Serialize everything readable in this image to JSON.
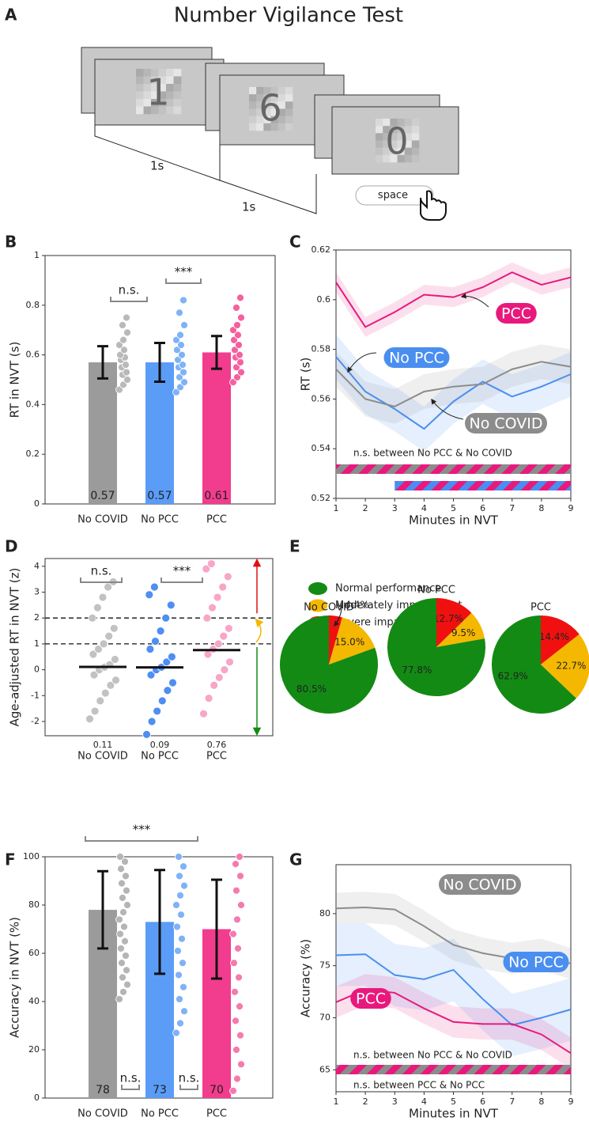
{
  "panel_a": {
    "label": "A",
    "title": "Number Vigilance Test",
    "digits": [
      "1",
      "6",
      "0"
    ],
    "intervals": [
      "1s",
      "1s"
    ],
    "key": "space"
  },
  "chart_data": [
    {
      "type": "bar",
      "panel_label": "B",
      "ylabel": "RT in NVT (s)",
      "categories": [
        "No COVID",
        "No PCC",
        "PCC"
      ],
      "values": [
        0.57,
        0.57,
        0.61
      ],
      "value_labels": [
        "0.57",
        "0.57",
        "0.61"
      ],
      "errors": [
        0.065,
        0.078,
        0.066
      ],
      "colors": [
        "#9b9b9b",
        "#5b9cf7",
        "#f23c8d"
      ],
      "point_colors": [
        "#b9b9b9",
        "#7fb2f7",
        "#f5609f"
      ],
      "points": [
        [
          0.46,
          0.48,
          0.5,
          0.52,
          0.53,
          0.55,
          0.56,
          0.58,
          0.59,
          0.6,
          0.62,
          0.64,
          0.66,
          0.69,
          0.72,
          0.75
        ],
        [
          0.45,
          0.47,
          0.49,
          0.51,
          0.53,
          0.55,
          0.56,
          0.58,
          0.6,
          0.62,
          0.64,
          0.66,
          0.68,
          0.72,
          0.77,
          0.82
        ],
        [
          0.49,
          0.51,
          0.53,
          0.55,
          0.57,
          0.59,
          0.6,
          0.62,
          0.64,
          0.66,
          0.68,
          0.7,
          0.72,
          0.75,
          0.79,
          0.83
        ]
      ],
      "annotations": [
        "n.s.",
        "***"
      ],
      "ylim": [
        0,
        1
      ],
      "yticks": [
        0,
        0.2,
        0.4,
        0.6,
        0.8,
        1
      ]
    },
    {
      "type": "line",
      "panel_label": "C",
      "xlabel": "Minutes in NVT",
      "ylabel": "RT (s)",
      "x": [
        1,
        2,
        3,
        4,
        5,
        6,
        7,
        8,
        9
      ],
      "xlim": [
        1,
        9
      ],
      "xticks": [
        1,
        2,
        3,
        4,
        5,
        6,
        7,
        8,
        9
      ],
      "ylim": [
        0.52,
        0.62
      ],
      "yticks": [
        0.52,
        0.54,
        0.56,
        0.58,
        0.6,
        0.62
      ],
      "series": [
        {
          "name": "PCC",
          "color": "#e8197d",
          "error": 0.004,
          "values": [
            0.607,
            0.589,
            0.595,
            0.602,
            0.601,
            0.605,
            0.611,
            0.606,
            0.609
          ]
        },
        {
          "name": "No PCC",
          "color": "#4a8ef0",
          "error": 0.009,
          "values": [
            0.577,
            0.563,
            0.556,
            0.548,
            0.559,
            0.567,
            0.561,
            0.565,
            0.57
          ]
        },
        {
          "name": "No COVID",
          "color": "#8c8c8c",
          "error": 0.007,
          "values": [
            0.572,
            0.56,
            0.557,
            0.563,
            0.565,
            0.566,
            0.572,
            0.575,
            0.573
          ]
        }
      ],
      "annotations": [
        "n.s. between No PCC & No COVID"
      ],
      "significance_bars": [
        {
          "x": [
            1,
            9
          ],
          "colors": [
            "#8c8c8c",
            "#e8197d"
          ]
        },
        {
          "x": [
            3,
            9
          ],
          "colors": [
            "#4a8ef0",
            "#e8197d"
          ]
        }
      ]
    },
    {
      "type": "strip",
      "panel_label": "D",
      "ylabel": "Age-adjusted RT in NVT (z)",
      "categories": [
        "No COVID",
        "No PCC",
        "PCC"
      ],
      "medians": [
        0.11,
        0.09,
        0.76
      ],
      "point_colors": [
        "#c2c2c2",
        "#4f8ef2",
        "#f7a6c8"
      ],
      "thresholds": [
        1,
        2
      ],
      "points": [
        [
          -1.9,
          -1.6,
          -1.2,
          -0.9,
          -0.6,
          -0.4,
          -0.2,
          0,
          0.1,
          0.2,
          0.4,
          0.6,
          0.8,
          1,
          1.3,
          1.6,
          2,
          2.4,
          2.8,
          3.2,
          3.4
        ],
        [
          -2.5,
          -2,
          -1.6,
          -1.2,
          -0.8,
          -0.5,
          -0.2,
          0,
          0.1,
          0.3,
          0.5,
          0.8,
          1.1,
          1.5,
          2,
          2.5,
          2.9,
          3.2
        ],
        [
          -1.7,
          -1.1,
          -0.6,
          -0.3,
          0,
          0.3,
          0.6,
          0.8,
          1,
          1.3,
          1.6,
          2,
          2.4,
          2.8,
          3.2,
          3.6,
          3.9,
          4.1
        ]
      ],
      "annotations": [
        "n.s.",
        "***"
      ],
      "ylim": [
        -2.55,
        4.3
      ],
      "yticks": [
        -2,
        -1,
        0,
        1,
        2,
        3,
        4
      ]
    },
    {
      "type": "pie",
      "panel_label": "E",
      "labels": [
        "Normal performance",
        "Moderately impairement",
        "Severe impairment"
      ],
      "colors": [
        "#138a13",
        "#f5b800",
        "#f01010"
      ],
      "pies": [
        {
          "title": "No COVID",
          "values": [
            80.5,
            15.0,
            4.4
          ],
          "value_labels": [
            "80.5%",
            "15.0%",
            "4.4%"
          ]
        },
        {
          "title": "No PCC",
          "values": [
            77.8,
            9.5,
            12.7
          ],
          "value_labels": [
            "77.8%",
            "9.5%",
            "12.7%"
          ]
        },
        {
          "title": "PCC",
          "values": [
            62.9,
            22.7,
            14.4
          ],
          "value_labels": [
            "62.9%",
            "22.7%",
            "14.4%"
          ]
        }
      ]
    },
    {
      "type": "bar",
      "panel_label": "F",
      "ylabel": "Accuracy in NVT (%)",
      "categories": [
        "No COVID",
        "No PCC",
        "PCC"
      ],
      "values": [
        78,
        73,
        70
      ],
      "errors": [
        16,
        21.5,
        20.5
      ],
      "colors": [
        "#9b9b9b",
        "#5b9cf7",
        "#f23c8d"
      ],
      "point_colors": [
        "#b5b5b5",
        "#7fb2f7",
        "#f57aae"
      ],
      "points": [
        [
          41,
          44,
          47,
          50,
          53,
          56,
          59,
          62,
          65,
          68,
          71,
          74,
          77,
          80,
          83,
          86,
          89,
          92,
          95,
          98,
          100
        ],
        [
          27,
          31,
          36,
          41,
          46,
          51,
          56,
          61,
          66,
          71,
          76,
          80,
          84,
          88,
          92,
          96,
          100
        ],
        [
          3,
          8,
          14,
          20,
          26,
          32,
          38,
          44,
          50,
          56,
          62,
          68,
          74,
          80,
          86,
          92,
          97,
          100
        ]
      ],
      "annotations": [
        "***",
        "n.s.",
        "n.s."
      ],
      "ylim": [
        0,
        100
      ],
      "yticks": [
        0,
        20,
        40,
        60,
        80,
        100
      ]
    },
    {
      "type": "line",
      "panel_label": "G",
      "xlabel": "Minutes in NVT",
      "ylabel": "Accuracy (%)",
      "x": [
        1,
        2,
        3,
        4,
        5,
        6,
        7,
        8,
        9
      ],
      "xlim": [
        1,
        9
      ],
      "xticks": [
        1,
        2,
        3,
        4,
        5,
        6,
        7,
        8,
        9
      ],
      "ylim": [
        62.9,
        84.7
      ],
      "yticks": [
        65,
        70,
        75,
        80
      ],
      "series": [
        {
          "name": "No COVID",
          "color": "#8c8c8c",
          "error": 1.5,
          "values": [
            80.5,
            80.6,
            80.4,
            78.8,
            77.0,
            76.2,
            75.7,
            76.1,
            75.2
          ]
        },
        {
          "name": "No PCC",
          "color": "#4a8ef0",
          "error": 3,
          "values": [
            76.0,
            76.1,
            74.1,
            73.7,
            74.6,
            71.8,
            69.3,
            70.0,
            70.8
          ]
        },
        {
          "name": "PCC",
          "color": "#e8197d",
          "error": 1.5,
          "values": [
            71.5,
            72.7,
            72.4,
            70.9,
            69.6,
            69.4,
            69.4,
            68.4,
            66.6
          ]
        }
      ],
      "annotations": [
        "n.s. between No PCC & No COVID",
        "n.s. between PCC & No PCC"
      ],
      "significance_bars": [
        {
          "x": [
            1,
            9
          ],
          "colors": [
            "#8c8c8c",
            "#e8197d"
          ]
        }
      ]
    }
  ]
}
